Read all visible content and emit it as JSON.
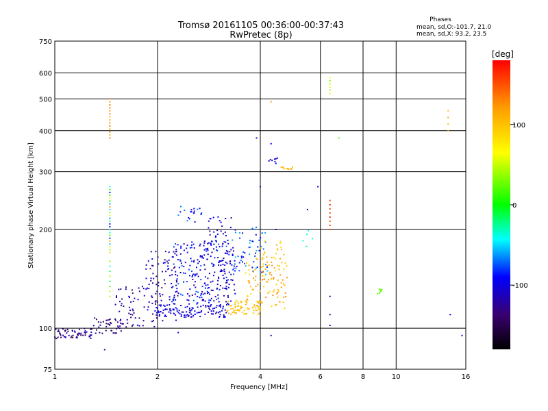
{
  "chart_data": {
    "type": "scatter",
    "title": "Tromsø 20161105 00:36:00-00:37:43",
    "subtitle": "RwPretec (8p)",
    "xlabel": "Frequency [MHz]",
    "ylabel": "Stationary phase Virtual Height [km]",
    "x_scale": "log",
    "y_scale": "log",
    "xlim": [
      1,
      16
    ],
    "ylim": [
      75,
      750
    ],
    "x_ticks": [
      "1",
      "2",
      "4",
      "6",
      "8",
      "10",
      "16"
    ],
    "x_tick_values": [
      1,
      2,
      4,
      6,
      8,
      10,
      16
    ],
    "y_ticks": [
      "75",
      "100",
      "200",
      "300",
      "400",
      "500",
      "600",
      "750"
    ],
    "y_tick_values": [
      75,
      100,
      200,
      300,
      400,
      500,
      600,
      750
    ],
    "grid": true,
    "stats": {
      "heading": "Phases",
      "line_o": "mean, sd,O:-101.7, 21.0",
      "line_x": "mean, sd,X:  93.2, 23.5"
    },
    "colorbar": {
      "label": "[deg]",
      "range": [
        -180,
        180
      ],
      "ticks": [
        "100",
        "0",
        "-100"
      ],
      "tick_values": [
        100,
        0,
        -100
      ]
    },
    "point_groups": [
      {
        "f": [
          1.0,
          1.3
        ],
        "h": [
          93,
          100
        ],
        "phase": [
          -150,
          -110
        ],
        "n": 60
      },
      {
        "f": [
          1.3,
          1.6
        ],
        "h": [
          96,
          108
        ],
        "phase": [
          -150,
          -110
        ],
        "n": 40
      },
      {
        "f": [
          1.5,
          2.0
        ],
        "h": [
          100,
          135
        ],
        "phase": [
          -140,
          -100
        ],
        "n": 60
      },
      {
        "f": [
          1.85,
          2.3
        ],
        "h": [
          105,
          175
        ],
        "phase": [
          -140,
          -90
        ],
        "n": 90
      },
      {
        "f": [
          2.0,
          3.2
        ],
        "h": [
          108,
          118
        ],
        "phase": [
          -120,
          -85
        ],
        "n": 110
      },
      {
        "f": [
          2.2,
          3.4
        ],
        "h": [
          118,
          185
        ],
        "phase": [
          -125,
          -70
        ],
        "n": 200
      },
      {
        "f": [
          2.3,
          2.8
        ],
        "h": [
          210,
          235
        ],
        "phase": [
          -120,
          -60
        ],
        "n": 20
      },
      {
        "f": [
          2.7,
          3.3
        ],
        "h": [
          120,
          220
        ],
        "phase": [
          -130,
          -90
        ],
        "n": 90
      },
      {
        "f": [
          3.3,
          4.2
        ],
        "h": [
          145,
          205
        ],
        "phase": [
          -110,
          -50
        ],
        "n": 60
      },
      {
        "f": [
          3.2,
          4.0
        ],
        "h": [
          110,
          122
        ],
        "phase": [
          85,
          115
        ],
        "n": 70
      },
      {
        "f": [
          3.6,
          4.8
        ],
        "h": [
          115,
          165
        ],
        "phase": [
          80,
          135
        ],
        "n": 90
      },
      {
        "f": [
          4.0,
          4.7
        ],
        "h": [
          140,
          185
        ],
        "phase": [
          85,
          120
        ],
        "n": 30
      },
      {
        "f": [
          4.2,
          4.6
        ],
        "h": [
          315,
          335
        ],
        "phase": [
          -110,
          -90
        ],
        "n": 8
      },
      {
        "f": [
          4.6,
          5.0
        ],
        "h": [
          305,
          310
        ],
        "phase": [
          95,
          110
        ],
        "n": 10
      },
      {
        "f": [
          5.3,
          5.7
        ],
        "h": [
          175,
          205
        ],
        "phase": [
          -50,
          -30
        ],
        "n": 5
      },
      {
        "f": [
          8.8,
          9.1
        ],
        "h": [
          126,
          132
        ],
        "phase": [
          0,
          30
        ],
        "n": 8
      }
    ],
    "traces": [
      {
        "f": 1.45,
        "h": [
          380,
          500
        ],
        "phase": [
          100,
          140
        ],
        "n": 14
      },
      {
        "f": 1.45,
        "h": [
          170,
          270
        ],
        "phase": [
          -100,
          140
        ],
        "n": 24
      },
      {
        "f": 1.45,
        "h": [
          125,
          160
        ],
        "phase": [
          -40,
          60
        ],
        "n": 8
      },
      {
        "f": 6.4,
        "h": [
          200,
          245
        ],
        "phase": [
          150,
          175
        ],
        "n": 8
      },
      {
        "f": 6.4,
        "h": [
          520,
          580
        ],
        "phase": [
          20,
          100
        ],
        "n": 6
      },
      {
        "f": 14.2,
        "h": [
          400,
          460
        ],
        "phase": [
          100,
          130
        ],
        "n": 4
      }
    ],
    "isolated_points": [
      {
        "f": 1.4,
        "h": 86,
        "phase": -120
      },
      {
        "f": 2.3,
        "h": 97,
        "phase": -100
      },
      {
        "f": 3.9,
        "h": 380,
        "phase": -120
      },
      {
        "f": 4.0,
        "h": 270,
        "phase": -120
      },
      {
        "f": 4.3,
        "h": 490,
        "phase": 120
      },
      {
        "f": 4.3,
        "h": 365,
        "phase": -90
      },
      {
        "f": 4.3,
        "h": 95,
        "phase": -110
      },
      {
        "f": 4.45,
        "h": 200,
        "phase": -110
      },
      {
        "f": 5.5,
        "h": 230,
        "phase": -100
      },
      {
        "f": 5.9,
        "h": 270,
        "phase": -110
      },
      {
        "f": 6.4,
        "h": 125,
        "phase": -110
      },
      {
        "f": 6.4,
        "h": 110,
        "phase": -120
      },
      {
        "f": 6.4,
        "h": 102,
        "phase": -110
      },
      {
        "f": 6.8,
        "h": 380,
        "phase": 20
      },
      {
        "f": 14.4,
        "h": 110,
        "phase": -110
      },
      {
        "f": 15.6,
        "h": 95,
        "phase": -100
      }
    ]
  }
}
